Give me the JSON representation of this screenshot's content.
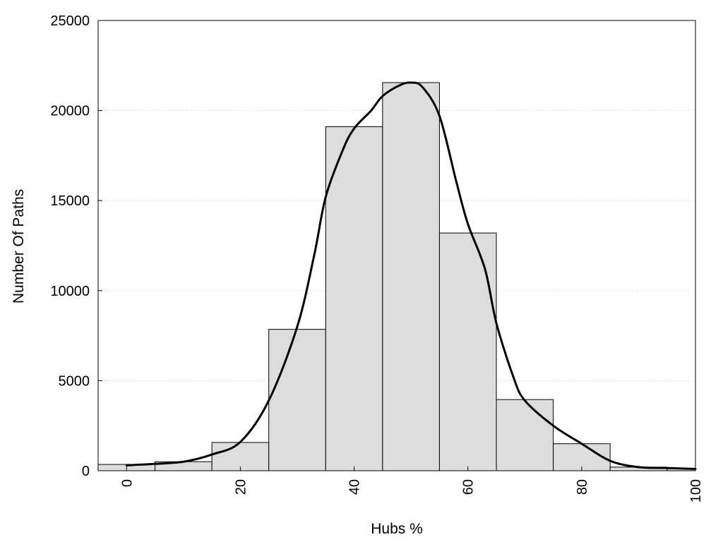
{
  "chart_data": {
    "type": "bar",
    "xlabel": "Hubs %",
    "ylabel": "Number Of Paths",
    "xlim": [
      -5,
      100
    ],
    "ylim": [
      0,
      25000
    ],
    "xticks": [
      0,
      20,
      40,
      60,
      80,
      100
    ],
    "yticks": [
      0,
      5000,
      10000,
      15000,
      20000,
      25000
    ],
    "grid": "y-dotted",
    "bins": [
      {
        "x0": -5,
        "x1": 5,
        "value": 350
      },
      {
        "x0": 5,
        "x1": 15,
        "value": 500
      },
      {
        "x0": 15,
        "x1": 25,
        "value": 1570
      },
      {
        "x0": 25,
        "x1": 35,
        "value": 7850
      },
      {
        "x0": 35,
        "x1": 45,
        "value": 19100
      },
      {
        "x0": 45,
        "x1": 55,
        "value": 21550
      },
      {
        "x0": 55,
        "x1": 65,
        "value": 13200
      },
      {
        "x0": 65,
        "x1": 75,
        "value": 3950
      },
      {
        "x0": 75,
        "x1": 85,
        "value": 1500
      },
      {
        "x0": 85,
        "x1": 95,
        "value": 200
      },
      {
        "x0": 95,
        "x1": 100,
        "value": 100
      }
    ],
    "density_curve": {
      "x": [
        0,
        5,
        10,
        15,
        20,
        25,
        30,
        33,
        35,
        38,
        40,
        43,
        45,
        48,
        50,
        52,
        55,
        58,
        60,
        63,
        65,
        68,
        70,
        75,
        80,
        85,
        90,
        95,
        100
      ],
      "y": [
        300,
        380,
        500,
        900,
        1600,
        3900,
        8000,
        12000,
        15200,
        17800,
        19000,
        20000,
        20800,
        21400,
        21550,
        21300,
        19700,
        16000,
        13700,
        11200,
        8200,
        5200,
        3900,
        2500,
        1500,
        550,
        200,
        150,
        100
      ]
    }
  }
}
